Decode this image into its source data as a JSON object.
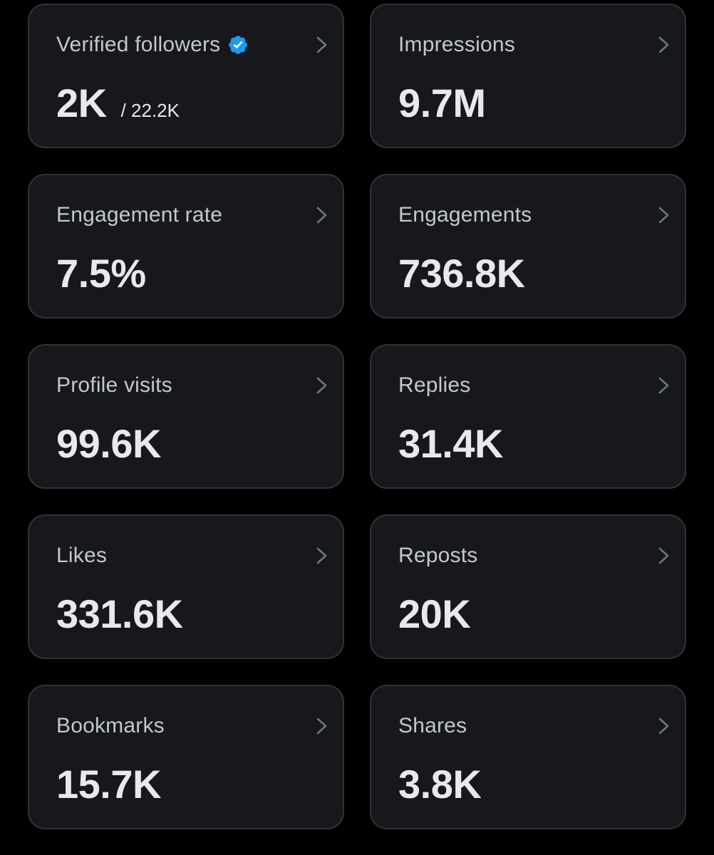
{
  "colors": {
    "background": "#000000",
    "card_background": "#16181c",
    "card_border": "#2f3336",
    "label_text": "#c4c7cb",
    "value_text": "#e7e9ea",
    "verified_badge": "#1d9bf0"
  },
  "metrics": [
    {
      "label": "Verified followers",
      "value": "2K",
      "total": "/ 22.2K",
      "icon": "verified-badge-icon"
    },
    {
      "label": "Impressions",
      "value": "9.7M"
    },
    {
      "label": "Engagement rate",
      "value": "7.5%"
    },
    {
      "label": "Engagements",
      "value": "736.8K"
    },
    {
      "label": "Profile visits",
      "value": "99.6K"
    },
    {
      "label": "Replies",
      "value": "31.4K"
    },
    {
      "label": "Likes",
      "value": "331.6K"
    },
    {
      "label": "Reposts",
      "value": "20K"
    },
    {
      "label": "Bookmarks",
      "value": "15.7K"
    },
    {
      "label": "Shares",
      "value": "3.8K"
    }
  ]
}
